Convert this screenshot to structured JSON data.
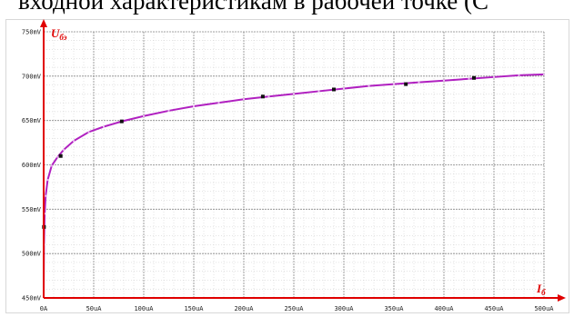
{
  "caption": "входной характеристикам в рабочей точке (С",
  "chart_data": {
    "type": "line",
    "title": "",
    "ylabel": "U",
    "ylabel_sub": "бэ",
    "xlabel": "I",
    "xlabel_sub": "б",
    "xlim": [
      0,
      500
    ],
    "ylim": [
      450,
      750
    ],
    "x_ticks": [
      "0A",
      "50uA",
      "100uA",
      "150uA",
      "200uA",
      "250uA",
      "300uA",
      "350uA",
      "400uA",
      "450uA",
      "500uA"
    ],
    "y_ticks": [
      "450mV",
      "500mV",
      "550mV",
      "600mV",
      "650mV",
      "700mV",
      "750mV"
    ],
    "grid": true,
    "curve_color": "#b020c0",
    "axis_color": "#e00000",
    "series": [
      {
        "name": "",
        "x": [
          0,
          0.3,
          1,
          2,
          4,
          8,
          14,
          20,
          30,
          45,
          60,
          78,
          100,
          125,
          150,
          175,
          200,
          225,
          250,
          275,
          300,
          325,
          350,
          375,
          400,
          425,
          450,
          475,
          500
        ],
        "y": [
          450,
          510,
          545,
          565,
          583,
          599,
          609,
          617,
          627,
          637,
          643,
          649,
          655,
          661,
          666,
          670,
          674,
          677,
          680,
          683,
          686,
          689,
          691,
          693,
          695,
          697,
          699,
          701,
          702
        ]
      }
    ],
    "markers": [
      {
        "x": 0.3,
        "y": 530
      },
      {
        "x": 17,
        "y": 610
      },
      {
        "x": 78,
        "y": 649
      },
      {
        "x": 219,
        "y": 677
      },
      {
        "x": 290,
        "y": 685
      },
      {
        "x": 362,
        "y": 691
      },
      {
        "x": 430,
        "y": 698
      }
    ]
  }
}
